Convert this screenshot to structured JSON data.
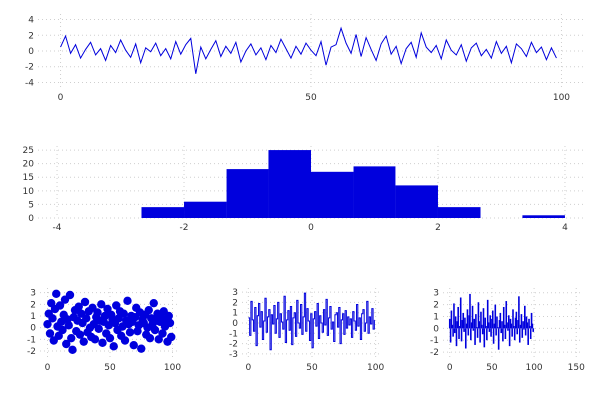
{
  "figure": {
    "background": "#ffffff",
    "accent": "#0000dd",
    "grid_color": "#cfcfcf",
    "tick_color": "#333333"
  },
  "chart_data": [
    {
      "type": "line",
      "title": "",
      "xlabel": "",
      "ylabel": "",
      "xlim": [
        -4.5,
        104.5
      ],
      "ylim": [
        -4.7,
        4.7
      ],
      "xticks": [
        0,
        50,
        100
      ],
      "yticks": [
        -4,
        -2,
        0,
        2,
        4
      ],
      "x_start": 0,
      "x_step": 1,
      "values": [
        0.5,
        1.9,
        -0.3,
        0.8,
        -0.9,
        0.2,
        1.1,
        -0.5,
        0.3,
        -1.2,
        0.7,
        -0.2,
        1.4,
        0.1,
        -0.8,
        0.9,
        -1.5,
        0.4,
        -0.1,
        1.0,
        -0.6,
        0.3,
        -1.0,
        1.2,
        -0.4,
        0.8,
        1.6,
        -2.9,
        0.5,
        -1.0,
        0.2,
        1.3,
        -0.7,
        0.6,
        -0.3,
        1.1,
        -1.4,
        0.0,
        0.9,
        -0.5,
        0.4,
        -1.1,
        0.7,
        -0.2,
        1.5,
        0.3,
        -0.9,
        0.6,
        -0.4,
        1.0,
        0.1,
        -0.6,
        1.2,
        -1.8,
        0.5,
        0.8,
        2.9,
        1.0,
        -0.3,
        2.1,
        -0.7,
        1.7,
        0.2,
        -1.2,
        0.9,
        1.9,
        -0.4,
        0.6,
        -1.6,
        0.3,
        1.1,
        -0.8,
        2.3,
        0.5,
        -0.2,
        0.7,
        -1.0,
        1.4,
        0.1,
        -0.5,
        0.8,
        -1.3,
        0.4,
        1.0,
        -0.6,
        0.2,
        -0.9,
        1.2,
        -0.3,
        0.6,
        -1.5,
        0.9,
        0.3,
        -0.7,
        1.1,
        -0.2,
        0.5,
        -1.1,
        0.4,
        -0.9
      ]
    },
    {
      "type": "histogram",
      "title": "",
      "xlabel": "",
      "ylabel": "",
      "xlim": [
        -4.3,
        4.3
      ],
      "ylim": [
        0,
        26.5
      ],
      "xticks": [
        -4,
        -2,
        0,
        2,
        4
      ],
      "yticks": [
        0,
        5,
        10,
        15,
        20,
        25
      ],
      "bin_edges": [
        -2.67,
        -2.0,
        -1.33,
        -0.67,
        0,
        0.67,
        1.33,
        2.0,
        2.67,
        3.33,
        4.0
      ],
      "counts": [
        4,
        6,
        18,
        25,
        17,
        19,
        12,
        4,
        0,
        1
      ]
    },
    {
      "type": "scatter",
      "title": "",
      "xlabel": "",
      "ylabel": "",
      "xlim": [
        -6,
        106
      ],
      "ylim": [
        -2.6,
        3.4
      ],
      "xticks": [
        0,
        50,
        100
      ],
      "yticks": [
        -2,
        -1,
        0,
        1,
        2,
        3
      ],
      "x_start": 0,
      "x_step": 1,
      "values": [
        0.3,
        1.2,
        -0.5,
        2.1,
        0.8,
        -1.1,
        1.6,
        2.9,
        0.1,
        -0.7,
        1.9,
        0.5,
        -0.2,
        1.1,
        2.4,
        -1.4,
        0.7,
        0.2,
        2.8,
        -0.9,
        -1.9,
        0.9,
        1.5,
        -0.3,
        0.6,
        1.8,
        -0.6,
        1.2,
        0.4,
        -1.2,
        2.2,
        0.8,
        -0.4,
        1.4,
        0.0,
        -0.8,
        1.7,
        0.3,
        -1.0,
        0.9,
        1.3,
        -0.1,
        0.6,
        2.0,
        -1.3,
        0.5,
        1.0,
        -0.5,
        1.6,
        0.2,
        -0.9,
        1.1,
        0.7,
        -1.6,
        0.4,
        1.9,
        -0.2,
        0.8,
        1.4,
        -0.7,
        0.1,
        1.2,
        -1.1,
        0.6,
        2.3,
        0.3,
        -0.4,
        1.0,
        0.5,
        -1.5,
        0.9,
        1.7,
        -0.3,
        0.2,
        1.3,
        -1.8,
        0.7,
        0.4,
        1.1,
        -0.6,
        0.0,
        1.5,
        -0.9,
        0.8,
        0.3,
        2.1,
        -0.2,
        0.6,
        1.2,
        -1.0,
        0.5,
        0.9,
        -0.5,
        1.4,
        0.1,
        0.7,
        -1.2,
        1.0,
        0.4,
        -0.8
      ]
    },
    {
      "type": "step",
      "title": "",
      "xlabel": "",
      "ylabel": "",
      "xlim": [
        -5,
        105
      ],
      "ylim": [
        -3.4,
        3.4
      ],
      "xticks": [
        0,
        50,
        100
      ],
      "yticks": [
        -3,
        -2,
        -1,
        0,
        1,
        2,
        3
      ],
      "x_start": 0,
      "x_step": 1,
      "values": [
        0.5,
        -1.2,
        2.1,
        0.3,
        -0.8,
        1.5,
        -2.2,
        0.7,
        1.9,
        -0.4,
        1.1,
        -1.6,
        0.2,
        2.4,
        -0.9,
        0.6,
        1.3,
        -2.6,
        0.8,
        -0.1,
        1.7,
        -1.0,
        0.4,
        2.0,
        -1.4,
        0.9,
        0.1,
        -0.6,
        2.6,
        -1.9,
        0.3,
        1.2,
        -0.7,
        1.6,
        -2.1,
        0.5,
        1.0,
        -1.3,
        2.2,
        0.0,
        -0.5,
        1.8,
        -1.1,
        0.6,
        2.9,
        -0.8,
        1.4,
        0.2,
        -1.7,
        0.9,
        -2.4,
        0.4,
        1.1,
        -0.3,
        1.9,
        -1.5,
        0.7,
        0.0,
        -0.9,
        1.3,
        -0.2,
        2.3,
        -1.2,
        0.5,
        1.6,
        -0.6,
        0.1,
        -1.8,
        0.8,
        1.0,
        -0.4,
        1.5,
        -2.0,
        0.3,
        0.9,
        -1.1,
        1.2,
        -0.5,
        0.6,
        -0.2,
        0.4,
        -1.4,
        1.1,
        0.2,
        -0.7,
        1.8,
        -0.3,
        0.5,
        -1.6,
        0.9,
        1.3,
        -0.8,
        0.0,
        2.1,
        -1.0,
        0.6,
        -0.1,
        1.4,
        -0.6,
        0.3
      ]
    },
    {
      "type": "stem",
      "title": "",
      "xlabel": "",
      "ylabel": "",
      "xlim": [
        -8,
        158
      ],
      "ylim": [
        -2.5,
        3.4
      ],
      "xticks": [
        0,
        50,
        100,
        150
      ],
      "yticks": [
        -2,
        -1,
        0,
        1,
        2,
        3
      ],
      "x_start": 0,
      "x_step": 1,
      "values": [
        0.8,
        -1.2,
        1.5,
        0.3,
        -0.7,
        2.1,
        -0.4,
        1.0,
        -1.5,
        0.6,
        1.8,
        -0.9,
        0.2,
        2.6,
        -1.1,
        0.7,
        1.3,
        -0.3,
        0.9,
        -1.7,
        0.4,
        1.6,
        -0.6,
        1.1,
        2.9,
        -1.0,
        0.5,
        1.9,
        -0.2,
        0.8,
        -1.4,
        1.2,
        0.1,
        -0.8,
        2.2,
        0.6,
        -1.2,
        1.4,
        0.3,
        -0.5,
        1.7,
        -1.6,
        0.9,
        0.2,
        -1.0,
        2.4,
        0.5,
        -0.3,
        1.1,
        -0.7,
        0.8,
        1.5,
        -1.3,
        0.4,
        2.0,
        -0.6,
        1.0,
        0.1,
        -1.8,
        0.7,
        1.3,
        -0.4,
        0.6,
        -1.1,
        1.8,
        0.3,
        -0.9,
        2.3,
        0.5,
        -0.2,
        1.1,
        -1.5,
        0.8,
        0.4,
        -0.7,
        1.6,
        0.2,
        -1.0,
        0.9,
        1.4,
        -0.5,
        0.7,
        2.7,
        -1.2,
        0.3,
        1.2,
        -0.8,
        0.6,
        -0.1,
        1.9,
        -0.6,
        1.0,
        0.5,
        -1.4,
        0.8,
        0.2,
        -0.9,
        1.3,
        0.4,
        -0.3
      ]
    }
  ]
}
